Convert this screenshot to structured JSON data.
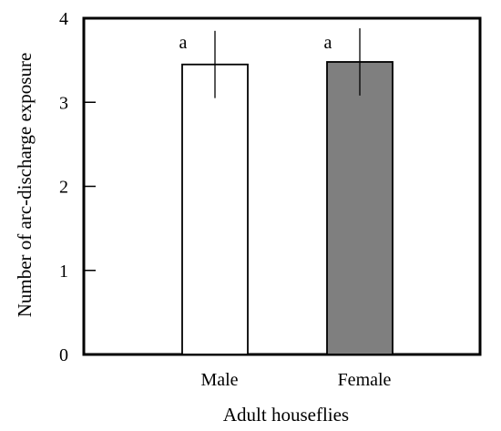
{
  "chart_data": {
    "type": "bar",
    "categories": [
      "Male",
      "Female"
    ],
    "series": [
      {
        "values": [
          3.45,
          3.48
        ],
        "errors": [
          0.4,
          0.4
        ],
        "colors": [
          "#ffffff",
          "#7f7f7f"
        ],
        "significance_labels": [
          "a",
          "a"
        ]
      }
    ],
    "ylim": [
      0,
      4
    ],
    "yticks": [
      0,
      1,
      2,
      3,
      4
    ],
    "xlabel": "Adult houseflies",
    "ylabel": "Number of arc-discharge exposure",
    "grid": false,
    "legend": "none"
  }
}
